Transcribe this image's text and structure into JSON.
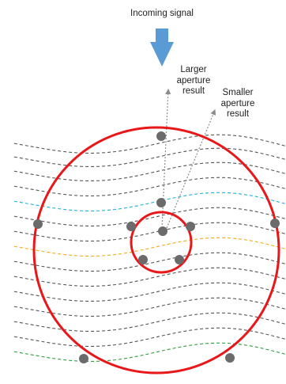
{
  "labels": {
    "incoming": "Incoming signal",
    "larger": [
      "Larger",
      "aperture",
      "result"
    ],
    "smaller": [
      "Smaller",
      "aperture",
      "result"
    ]
  },
  "colors": {
    "wave_default": "#555555",
    "wave_blue": "#1EB1D6",
    "wave_orange": "#F5A81A",
    "wave_green": "#2E9E3E",
    "aperture": "#E8171A",
    "receiver": "#6B6B6B",
    "arrow": "#5B9BD5",
    "pointer": "#8C8C8C"
  },
  "icons": {
    "incoming_arrow": "down-arrow-icon"
  }
}
